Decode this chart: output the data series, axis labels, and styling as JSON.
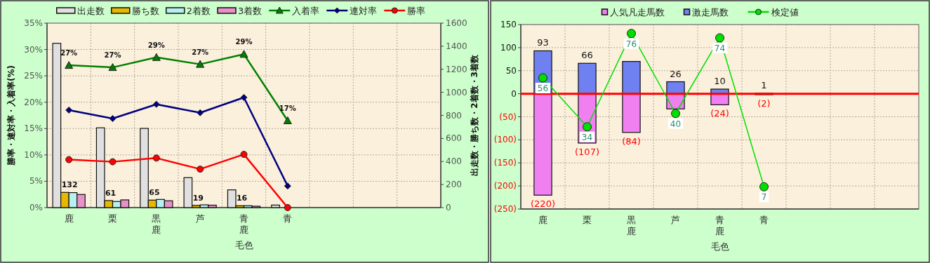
{
  "chart_data": [
    {
      "type": "bar",
      "xlabel": "毛色",
      "ylabel": "勝率・連対率・入着率(%)",
      "y2label": "出走数・勝ち数・2着数・3着数",
      "categories": [
        "鹿",
        "栗",
        "黒鹿",
        "芦",
        "青鹿",
        "青",
        null,
        null,
        null
      ],
      "series": [
        {
          "name": "出走数",
          "axis": "y2",
          "color": "#e0e0e0",
          "values": [
            1425,
            692,
            687,
            260,
            154,
            22,
            null,
            null,
            null
          ]
        },
        {
          "name": "勝ち数",
          "axis": "y2",
          "color": "#e6b800",
          "values": [
            132,
            61,
            65,
            19,
            16,
            0,
            null,
            null,
            null
          ],
          "value_labels": [
            "132",
            "61",
            "65",
            "19",
            "16",
            null,
            null,
            null,
            null
          ]
        },
        {
          "name": "2着数",
          "axis": "y2",
          "color": "#b8f0f0",
          "values": [
            130,
            53,
            71,
            24,
            16,
            0,
            null,
            null,
            null
          ]
        },
        {
          "name": "3着数",
          "axis": "y2",
          "color": "#e890c8",
          "values": [
            114,
            67,
            59,
            21,
            12,
            0,
            null,
            null,
            null
          ]
        },
        {
          "name": "入着率",
          "type": "line",
          "color": "#008000",
          "marker": "triangle",
          "values": [
            27.0,
            26.6,
            28.5,
            27.2,
            29.1,
            16.5,
            null,
            null,
            null
          ],
          "value_labels": [
            "27%",
            "27%",
            "29%",
            "27%",
            "29%",
            "17%",
            null,
            null,
            null
          ]
        },
        {
          "name": "連対率",
          "type": "line",
          "color": "#000080",
          "marker": "diamond",
          "values": [
            18.5,
            16.9,
            19.6,
            18.0,
            20.9,
            4.1,
            null,
            null,
            null
          ]
        },
        {
          "name": "勝率",
          "type": "line",
          "color": "#ff0000",
          "marker": "circle",
          "values": [
            9.1,
            8.7,
            9.4,
            7.3,
            10.1,
            0,
            null,
            null,
            null
          ]
        }
      ],
      "ylim": [
        0,
        35
      ],
      "yticks": [
        {
          "value": 0,
          "label": "0%"
        },
        {
          "value": 5,
          "label": "5%"
        },
        {
          "value": 10,
          "label": "10%"
        },
        {
          "value": 15,
          "label": "15%"
        },
        {
          "value": 20,
          "label": "20%"
        },
        {
          "value": 25,
          "label": "25%"
        },
        {
          "value": 30,
          "label": "30%"
        },
        {
          "value": 35,
          "label": "35%"
        }
      ],
      "y2lim": [
        0,
        1600
      ],
      "y2ticks": [
        0,
        200,
        400,
        600,
        800,
        1000,
        1200,
        1400,
        1600
      ],
      "grid": true,
      "legend": "top"
    },
    {
      "type": "bar",
      "stacked": true,
      "xlabel": "毛色",
      "categories": [
        "鹿",
        "栗",
        "黒鹿",
        "芦",
        "青鹿",
        "青",
        null,
        null,
        null
      ],
      "series": [
        {
          "name": "人気凡走馬数",
          "color": "#f080f0",
          "values": [
            -220,
            -107,
            -84,
            -33,
            -24,
            -2,
            null,
            null,
            null
          ],
          "value_labels": [
            "(220)",
            "(107)",
            "(84)",
            null,
            "(24)",
            "(2)",
            null,
            null,
            null
          ]
        },
        {
          "name": "激走馬数",
          "color": "#6f80f0",
          "values": [
            93,
            66,
            70,
            26,
            10,
            1,
            null,
            null,
            null
          ],
          "value_labels": [
            "93",
            "66",
            null,
            "26",
            "10",
            "1",
            null,
            null,
            null
          ]
        },
        {
          "name": "検定値",
          "type": "line",
          "axis": "y2",
          "color": "#00e000",
          "marker": "circle",
          "values": [
            56,
            34,
            76,
            40,
            74,
            7,
            null,
            null,
            null
          ],
          "value_labels": [
            "56",
            "34",
            "76",
            "40",
            "74",
            "7",
            null,
            null,
            null
          ]
        }
      ],
      "ylim": [
        -250,
        150
      ],
      "yticks": [
        {
          "value": -250,
          "label": "(250)"
        },
        {
          "value": -200,
          "label": "(200)"
        },
        {
          "value": -150,
          "label": "(150)"
        },
        {
          "value": -100,
          "label": "(100)"
        },
        {
          "value": -50,
          "label": "(50)"
        },
        0,
        50,
        100,
        150
      ],
      "y2lim": [
        -3,
        80
      ],
      "ref_lines": [
        {
          "axis": "y",
          "value": 0,
          "color": "#ff0000"
        }
      ],
      "grid": true,
      "legend": "top"
    }
  ]
}
